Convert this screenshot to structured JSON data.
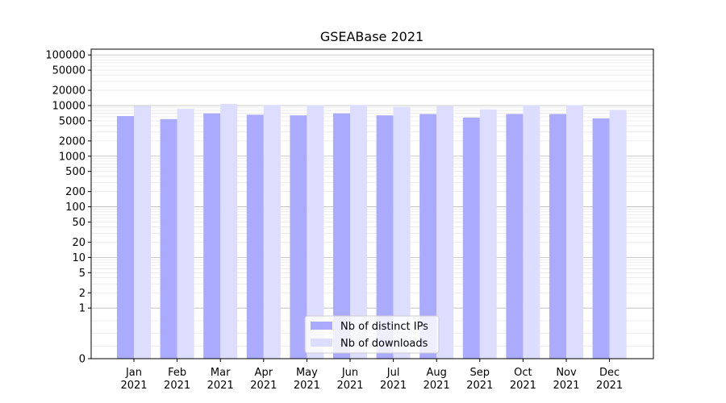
{
  "chart_data": {
    "type": "bar",
    "title": "GSEABase 2021",
    "xlabel": "",
    "ylabel": "",
    "yscale": "symlog",
    "ylim": [
      0,
      130000
    ],
    "grid": true,
    "legend_position": "bottom-center",
    "categories": [
      [
        "Jan",
        "2021"
      ],
      [
        "Feb",
        "2021"
      ],
      [
        "Mar",
        "2021"
      ],
      [
        "Apr",
        "2021"
      ],
      [
        "May",
        "2021"
      ],
      [
        "Jun",
        "2021"
      ],
      [
        "Jul",
        "2021"
      ],
      [
        "Aug",
        "2021"
      ],
      [
        "Sep",
        "2021"
      ],
      [
        "Oct",
        "2021"
      ],
      [
        "Nov",
        "2021"
      ],
      [
        "Dec",
        "2021"
      ]
    ],
    "yticks": [
      0,
      1,
      2,
      5,
      10,
      20,
      50,
      100,
      200,
      500,
      1000,
      2000,
      5000,
      10000,
      20000,
      50000,
      100000
    ],
    "series": [
      {
        "name": "Nb of distinct IPs",
        "color": "#aaaaff",
        "values": [
          6200,
          5400,
          7000,
          6600,
          6400,
          7000,
          6400,
          6800,
          5800,
          6800,
          6800,
          5600
        ]
      },
      {
        "name": "Nb of downloads",
        "color": "#ddddff",
        "values": [
          9800,
          8600,
          10800,
          10300,
          10100,
          10300,
          9400,
          9700,
          8400,
          10100,
          10200,
          8200
        ]
      }
    ]
  }
}
